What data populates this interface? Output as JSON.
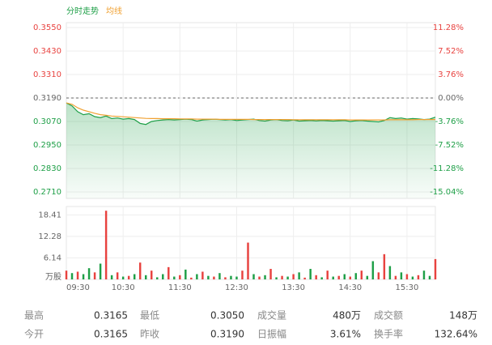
{
  "chart_data": [
    {
      "type": "line",
      "series": [
        {
          "name": "分时走势",
          "color": "#1e9f47",
          "values": [
            0.3165,
            0.315,
            0.312,
            0.3105,
            0.311,
            0.3095,
            0.309,
            0.3098,
            0.3085,
            0.3088,
            0.3082,
            0.3085,
            0.308,
            0.306,
            0.3055,
            0.307,
            0.3075,
            0.3078,
            0.308,
            0.3078,
            0.308,
            0.3082,
            0.308,
            0.3072,
            0.3078,
            0.308,
            0.3082,
            0.308,
            0.3078,
            0.308,
            0.3075,
            0.3078,
            0.308,
            0.3082,
            0.3075,
            0.3072,
            0.3078,
            0.308,
            0.3075,
            0.3074,
            0.3078,
            0.3072,
            0.3074,
            0.3075,
            0.3073,
            0.3075,
            0.3074,
            0.3072,
            0.3074,
            0.3075,
            0.307,
            0.3074,
            0.3075,
            0.3072,
            0.307,
            0.3068,
            0.3075,
            0.309,
            0.3085,
            0.3088,
            0.3082,
            0.3085,
            0.3083,
            0.308,
            0.3082,
            0.3092
          ]
        },
        {
          "name": "均线",
          "color": "#f0a030",
          "values": [
            0.3165,
            0.3158,
            0.314,
            0.3128,
            0.312,
            0.3112,
            0.3105,
            0.3102,
            0.3098,
            0.3096,
            0.3094,
            0.3092,
            0.309,
            0.3088,
            0.3086,
            0.3085,
            0.3085,
            0.3084,
            0.3084,
            0.3084,
            0.3083,
            0.3083,
            0.3083,
            0.3082,
            0.3082,
            0.3082,
            0.3082,
            0.3081,
            0.3081,
            0.3081,
            0.3081,
            0.3081,
            0.3081,
            0.308,
            0.308,
            0.308,
            0.308,
            0.308,
            0.308,
            0.308,
            0.3079,
            0.3079,
            0.3079,
            0.3079,
            0.3079,
            0.3079,
            0.3079,
            0.3079,
            0.3079,
            0.3079,
            0.3078,
            0.3078,
            0.3078,
            0.3078,
            0.3078,
            0.3078,
            0.3078,
            0.3079,
            0.3079,
            0.3079,
            0.3079,
            0.3079,
            0.308,
            0.308,
            0.308,
            0.308
          ]
        }
      ],
      "ylim": [
        0.2677,
        0.3575
      ],
      "yticks": [
        {
          "value": 0.355,
          "label": "0.3550"
        },
        {
          "value": 0.343,
          "label": "0.3430"
        },
        {
          "value": 0.331,
          "label": "0.3310"
        },
        {
          "value": 0.319,
          "label": "0.3190"
        },
        {
          "value": 0.307,
          "label": "0.3070"
        },
        {
          "value": 0.295,
          "label": "0.2950"
        },
        {
          "value": 0.283,
          "label": "0.2830"
        },
        {
          "value": 0.271,
          "label": "0.2710"
        }
      ],
      "y2lim": [
        -16.08,
        12.07
      ],
      "y2ticks": [
        {
          "value": 11.28,
          "label": "11.28%"
        },
        {
          "value": 7.52,
          "label": "7.52%"
        },
        {
          "value": 3.76,
          "label": "3.76%"
        },
        {
          "value": 0,
          "label": "0.00%"
        },
        {
          "value": -3.76,
          "label": "-3.76%"
        },
        {
          "value": -7.52,
          "label": "-7.52%"
        },
        {
          "value": -11.28,
          "label": "-11.28%"
        },
        {
          "value": -15.04,
          "label": "-15.04%"
        }
      ],
      "grid": true
    },
    {
      "type": "bar",
      "categories": [
        "09:30",
        null,
        null,
        null,
        null,
        null,
        null,
        null,
        null,
        null,
        "10:30",
        null,
        null,
        null,
        null,
        null,
        null,
        null,
        null,
        null,
        "11:30",
        null,
        null,
        null,
        null,
        null,
        null,
        null,
        null,
        null,
        "12:30",
        null,
        null,
        null,
        null,
        null,
        null,
        null,
        null,
        null,
        "13:30",
        null,
        null,
        null,
        null,
        null,
        null,
        null,
        null,
        null,
        "14:30",
        null,
        null,
        null,
        null,
        null,
        null,
        null,
        null,
        null,
        "15:30",
        null,
        null,
        null,
        null,
        null
      ],
      "values": [
        2.5,
        1.8,
        2.2,
        1.5,
        3.2,
        2.0,
        4.5,
        19.6,
        1.2,
        2.0,
        0.8,
        1.0,
        1.5,
        4.8,
        1.2,
        2.5,
        0.6,
        1.5,
        3.5,
        0.8,
        1.2,
        2.8,
        0.5,
        1.5,
        2.2,
        1.0,
        0.8,
        1.8,
        0.6,
        1.0,
        0.8,
        2.5,
        10.5,
        1.5,
        0.8,
        1.2,
        3.0,
        0.6,
        1.0,
        0.8,
        1.5,
        2.0,
        0.5,
        3.0,
        1.2,
        0.6,
        2.5,
        0.8,
        1.0,
        1.5,
        0.8,
        1.8,
        2.5,
        1.0,
        5.2,
        2.0,
        7.2,
        3.8,
        1.0,
        2.0,
        1.5,
        0.8,
        1.2,
        2.5,
        1.0,
        5.8
      ],
      "colors": [
        "#e8423f",
        "#1e9f47",
        "#e8423f",
        "#1e9f47",
        "#1e9f47",
        "#e8423f",
        "#1e9f47",
        "#e8423f",
        "#1e9f47",
        "#e8423f",
        "#1e9f47",
        "#e8423f",
        "#1e9f47",
        "#e8423f",
        "#1e9f47",
        "#e8423f",
        "#1e9f47",
        "#1e9f47",
        "#e8423f",
        "#1e9f47",
        "#e8423f",
        "#1e9f47",
        "#e8423f",
        "#1e9f47",
        "#e8423f",
        "#1e9f47",
        "#e8423f",
        "#1e9f47",
        "#e8423f",
        "#1e9f47",
        "#1e9f47",
        "#e8423f",
        "#e8423f",
        "#1e9f47",
        "#e8423f",
        "#1e9f47",
        "#e8423f",
        "#1e9f47",
        "#e8423f",
        "#1e9f47",
        "#e8423f",
        "#1e9f47",
        "#e8423f",
        "#1e9f47",
        "#e8423f",
        "#1e9f47",
        "#e8423f",
        "#1e9f47",
        "#e8423f",
        "#1e9f47",
        "#e8423f",
        "#1e9f47",
        "#e8423f",
        "#1e9f47",
        "#1e9f47",
        "#e8423f",
        "#e8423f",
        "#1e9f47",
        "#e8423f",
        "#1e9f47",
        "#e8423f",
        "#1e9f47",
        "#e8423f",
        "#1e9f47",
        "#1e9f47",
        "#e8423f"
      ],
      "ylim": [
        0,
        20.8
      ],
      "yticks": [
        18.41,
        12.28,
        6.14
      ],
      "y_unit": "万股",
      "grid": true
    }
  ],
  "stats": [
    [
      {
        "label": "最高",
        "value": "0.3165"
      },
      {
        "label": "最低",
        "value": "0.3050"
      },
      {
        "label": "成交量",
        "value": "480万"
      },
      {
        "label": "成交额",
        "value": "148万"
      }
    ],
    [
      {
        "label": "今开",
        "value": "0.3165"
      },
      {
        "label": "昨收",
        "value": "0.3190"
      },
      {
        "label": "日振幅",
        "value": "3.61%"
      },
      {
        "label": "换手率",
        "value": "132.64%"
      }
    ]
  ]
}
